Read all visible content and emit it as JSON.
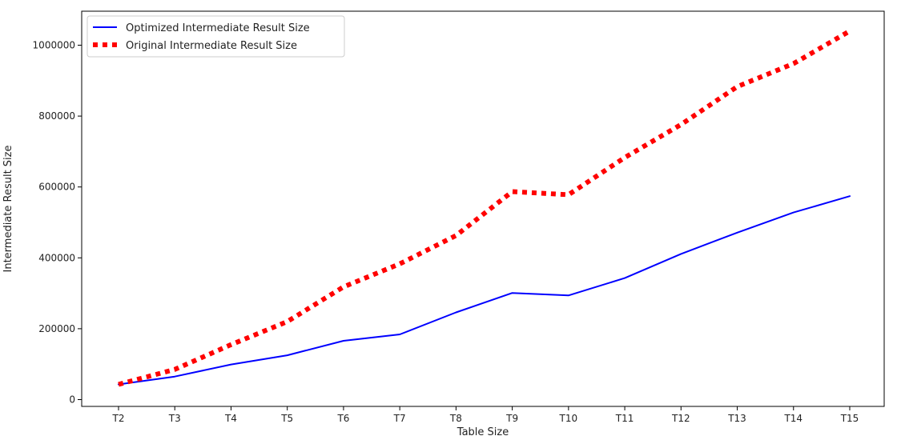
{
  "chart_data": {
    "type": "line",
    "categories": [
      "T2",
      "T3",
      "T4",
      "T5",
      "T6",
      "T7",
      "T8",
      "T9",
      "T10",
      "T11",
      "T12",
      "T13",
      "T14",
      "T15"
    ],
    "series": [
      {
        "name": "Optimized Intermediate Result Size",
        "color": "#0000ff",
        "line_style": "solid",
        "values": [
          43000,
          65000,
          99000,
          125000,
          166000,
          184000,
          246000,
          301000,
          294000,
          343000,
          411000,
          471000,
          528000,
          574000
        ]
      },
      {
        "name": "Original Intermediate Result Size",
        "color": "#ff0000",
        "line_style": "dotted",
        "values": [
          43000,
          85000,
          155000,
          220000,
          318000,
          383000,
          463000,
          587000,
          578000,
          683000,
          776000,
          883000,
          948000,
          1040000
        ]
      }
    ],
    "xlabel": "Table Size",
    "ylabel": "Intermediate Result Size",
    "yticks": [
      0,
      200000,
      400000,
      600000,
      800000,
      1000000
    ],
    "ylim": [
      -10000,
      1100000
    ],
    "legend_position": "top-left",
    "grid": false
  }
}
